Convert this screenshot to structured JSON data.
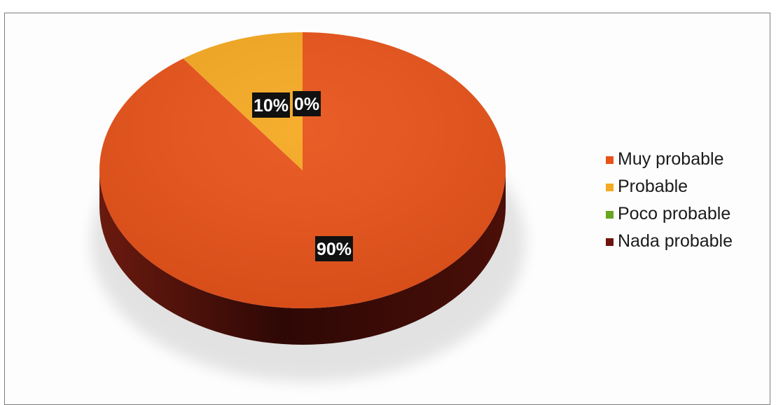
{
  "chart_data": {
    "type": "pie",
    "title": "",
    "categories": [
      "Muy probable",
      "Probable",
      "Poco probable",
      "Nada probable"
    ],
    "values": [
      90,
      10,
      0,
      0
    ],
    "data_labels": [
      "90%",
      "10%",
      "0%",
      "0%"
    ],
    "colors": [
      "#e8531a",
      "#f6a922",
      "#6aa621",
      "#6e1410"
    ],
    "depth_color": "#3d0a07",
    "label_box_color": "#111111",
    "label_text_color": "#ffffff",
    "legend_position": "right",
    "style": "3d"
  }
}
